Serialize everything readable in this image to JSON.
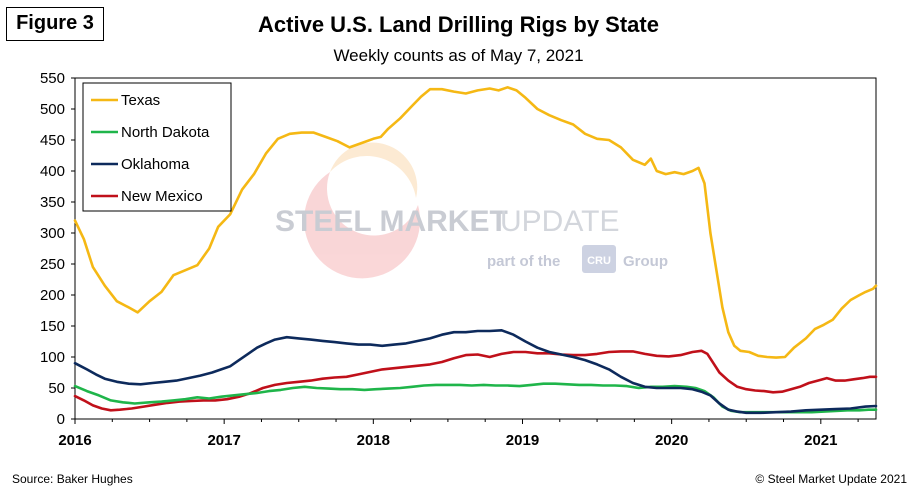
{
  "figure_label": "Figure 3",
  "title": "Active U.S. Land Drilling Rigs by State",
  "subtitle": "Weekly counts as of May 7, 2021",
  "source": "Source: Baker Hughes",
  "copyright": "© Steel Market Update 2021",
  "watermark": {
    "brand_main": "STEEL MARKET",
    "brand_light": "UPDATE",
    "tagline_before": "part of the",
    "tagline_logo": "CRU",
    "tagline_after": "Group"
  },
  "chart_data": {
    "type": "line",
    "title": "Active U.S. Land Drilling Rigs by State",
    "subtitle": "Weekly counts as of May 7, 2021",
    "xlabel": "",
    "ylabel": "",
    "xlim": [
      2016.0,
      2021.37
    ],
    "ylim": [
      0,
      550
    ],
    "y_ticks": [
      0,
      50,
      100,
      150,
      200,
      250,
      300,
      350,
      400,
      450,
      500,
      550
    ],
    "x_ticks": [
      "2016",
      "2017",
      "2018",
      "2019",
      "2020",
      "2021"
    ],
    "grid": false,
    "legend_position": "top-left",
    "series": [
      {
        "name": "Texas",
        "color": "#f5b814",
        "points": [
          [
            2016.0,
            320
          ],
          [
            2016.06,
            290
          ],
          [
            2016.12,
            245
          ],
          [
            2016.2,
            215
          ],
          [
            2016.28,
            190
          ],
          [
            2016.36,
            180
          ],
          [
            2016.42,
            172
          ],
          [
            2016.5,
            190
          ],
          [
            2016.58,
            205
          ],
          [
            2016.66,
            232
          ],
          [
            2016.74,
            240
          ],
          [
            2016.82,
            248
          ],
          [
            2016.9,
            275
          ],
          [
            2016.96,
            310
          ],
          [
            2017.04,
            330
          ],
          [
            2017.12,
            370
          ],
          [
            2017.2,
            395
          ],
          [
            2017.28,
            428
          ],
          [
            2017.36,
            452
          ],
          [
            2017.44,
            460
          ],
          [
            2017.52,
            462
          ],
          [
            2017.6,
            462
          ],
          [
            2017.68,
            455
          ],
          [
            2017.76,
            448
          ],
          [
            2017.84,
            438
          ],
          [
            2017.92,
            445
          ],
          [
            2018.0,
            452
          ],
          [
            2018.05,
            455
          ],
          [
            2018.1,
            468
          ],
          [
            2018.18,
            485
          ],
          [
            2018.26,
            505
          ],
          [
            2018.32,
            520
          ],
          [
            2018.38,
            532
          ],
          [
            2018.46,
            532
          ],
          [
            2018.54,
            528
          ],
          [
            2018.62,
            525
          ],
          [
            2018.7,
            530
          ],
          [
            2018.78,
            533
          ],
          [
            2018.84,
            530
          ],
          [
            2018.9,
            535
          ],
          [
            2018.96,
            530
          ],
          [
            2019.02,
            518
          ],
          [
            2019.1,
            500
          ],
          [
            2019.18,
            490
          ],
          [
            2019.26,
            482
          ],
          [
            2019.34,
            475
          ],
          [
            2019.42,
            460
          ],
          [
            2019.5,
            452
          ],
          [
            2019.58,
            450
          ],
          [
            2019.66,
            438
          ],
          [
            2019.74,
            418
          ],
          [
            2019.82,
            410
          ],
          [
            2019.86,
            420
          ],
          [
            2019.9,
            400
          ],
          [
            2019.96,
            395
          ],
          [
            2020.02,
            398
          ],
          [
            2020.08,
            395
          ],
          [
            2020.14,
            400
          ],
          [
            2020.18,
            405
          ],
          [
            2020.22,
            380
          ],
          [
            2020.26,
            300
          ],
          [
            2020.3,
            240
          ],
          [
            2020.34,
            180
          ],
          [
            2020.38,
            140
          ],
          [
            2020.42,
            118
          ],
          [
            2020.46,
            110
          ],
          [
            2020.52,
            108
          ],
          [
            2020.58,
            102
          ],
          [
            2020.64,
            100
          ],
          [
            2020.7,
            99
          ],
          [
            2020.76,
            100
          ],
          [
            2020.82,
            115
          ],
          [
            2020.9,
            130
          ],
          [
            2020.96,
            145
          ],
          [
            2021.02,
            152
          ],
          [
            2021.08,
            160
          ],
          [
            2021.14,
            178
          ],
          [
            2021.2,
            192
          ],
          [
            2021.26,
            200
          ],
          [
            2021.3,
            205
          ],
          [
            2021.35,
            210
          ],
          [
            2021.37,
            215
          ]
        ]
      },
      {
        "name": "North Dakota",
        "color": "#1fb54a",
        "points": [
          [
            2016.0,
            53
          ],
          [
            2016.08,
            45
          ],
          [
            2016.16,
            38
          ],
          [
            2016.24,
            30
          ],
          [
            2016.32,
            27
          ],
          [
            2016.4,
            25
          ],
          [
            2016.5,
            27
          ],
          [
            2016.58,
            28
          ],
          [
            2016.66,
            30
          ],
          [
            2016.74,
            32
          ],
          [
            2016.82,
            35
          ],
          [
            2016.9,
            33
          ],
          [
            2016.98,
            36
          ],
          [
            2017.06,
            38
          ],
          [
            2017.14,
            40
          ],
          [
            2017.22,
            42
          ],
          [
            2017.3,
            45
          ],
          [
            2017.38,
            47
          ],
          [
            2017.46,
            50
          ],
          [
            2017.54,
            52
          ],
          [
            2017.62,
            50
          ],
          [
            2017.7,
            49
          ],
          [
            2017.78,
            48
          ],
          [
            2017.86,
            48
          ],
          [
            2017.94,
            47
          ],
          [
            2018.02,
            48
          ],
          [
            2018.1,
            49
          ],
          [
            2018.18,
            50
          ],
          [
            2018.26,
            52
          ],
          [
            2018.34,
            54
          ],
          [
            2018.42,
            55
          ],
          [
            2018.5,
            55
          ],
          [
            2018.58,
            55
          ],
          [
            2018.66,
            54
          ],
          [
            2018.74,
            55
          ],
          [
            2018.82,
            54
          ],
          [
            2018.9,
            54
          ],
          [
            2018.98,
            53
          ],
          [
            2019.06,
            55
          ],
          [
            2019.14,
            57
          ],
          [
            2019.22,
            57
          ],
          [
            2019.3,
            56
          ],
          [
            2019.38,
            55
          ],
          [
            2019.46,
            55
          ],
          [
            2019.54,
            54
          ],
          [
            2019.62,
            54
          ],
          [
            2019.7,
            53
          ],
          [
            2019.78,
            50
          ],
          [
            2019.86,
            52
          ],
          [
            2019.94,
            52
          ],
          [
            2020.02,
            53
          ],
          [
            2020.1,
            52
          ],
          [
            2020.16,
            50
          ],
          [
            2020.22,
            45
          ],
          [
            2020.28,
            35
          ],
          [
            2020.34,
            20
          ],
          [
            2020.4,
            13
          ],
          [
            2020.46,
            11
          ],
          [
            2020.54,
            11
          ],
          [
            2020.62,
            11
          ],
          [
            2020.7,
            11
          ],
          [
            2020.78,
            11
          ],
          [
            2020.86,
            11
          ],
          [
            2020.94,
            11
          ],
          [
            2021.02,
            12
          ],
          [
            2021.1,
            13
          ],
          [
            2021.18,
            14
          ],
          [
            2021.26,
            14
          ],
          [
            2021.32,
            15
          ],
          [
            2021.37,
            15
          ]
        ]
      },
      {
        "name": "Oklahoma",
        "color": "#0d2a5c",
        "points": [
          [
            2016.0,
            90
          ],
          [
            2016.04,
            85
          ],
          [
            2016.08,
            80
          ],
          [
            2016.14,
            72
          ],
          [
            2016.2,
            65
          ],
          [
            2016.28,
            60
          ],
          [
            2016.36,
            57
          ],
          [
            2016.44,
            56
          ],
          [
            2016.52,
            58
          ],
          [
            2016.6,
            60
          ],
          [
            2016.68,
            62
          ],
          [
            2016.76,
            66
          ],
          [
            2016.84,
            70
          ],
          [
            2016.92,
            75
          ],
          [
            2016.98,
            80
          ],
          [
            2017.04,
            85
          ],
          [
            2017.1,
            95
          ],
          [
            2017.16,
            105
          ],
          [
            2017.22,
            115
          ],
          [
            2017.28,
            122
          ],
          [
            2017.34,
            128
          ],
          [
            2017.42,
            132
          ],
          [
            2017.5,
            130
          ],
          [
            2017.58,
            128
          ],
          [
            2017.66,
            126
          ],
          [
            2017.74,
            124
          ],
          [
            2017.82,
            122
          ],
          [
            2017.9,
            120
          ],
          [
            2017.98,
            120
          ],
          [
            2018.06,
            118
          ],
          [
            2018.14,
            120
          ],
          [
            2018.22,
            122
          ],
          [
            2018.3,
            126
          ],
          [
            2018.38,
            130
          ],
          [
            2018.46,
            136
          ],
          [
            2018.54,
            140
          ],
          [
            2018.62,
            140
          ],
          [
            2018.7,
            142
          ],
          [
            2018.78,
            142
          ],
          [
            2018.86,
            143
          ],
          [
            2018.94,
            136
          ],
          [
            2019.02,
            125
          ],
          [
            2019.1,
            115
          ],
          [
            2019.18,
            108
          ],
          [
            2019.26,
            104
          ],
          [
            2019.34,
            100
          ],
          [
            2019.42,
            95
          ],
          [
            2019.5,
            88
          ],
          [
            2019.58,
            80
          ],
          [
            2019.66,
            68
          ],
          [
            2019.74,
            58
          ],
          [
            2019.82,
            52
          ],
          [
            2019.9,
            50
          ],
          [
            2019.98,
            50
          ],
          [
            2020.06,
            50
          ],
          [
            2020.14,
            48
          ],
          [
            2020.2,
            44
          ],
          [
            2020.26,
            38
          ],
          [
            2020.32,
            25
          ],
          [
            2020.38,
            15
          ],
          [
            2020.44,
            12
          ],
          [
            2020.5,
            10
          ],
          [
            2020.6,
            10
          ],
          [
            2020.7,
            11
          ],
          [
            2020.8,
            12
          ],
          [
            2020.9,
            14
          ],
          [
            2021.0,
            15
          ],
          [
            2021.1,
            16
          ],
          [
            2021.2,
            17
          ],
          [
            2021.3,
            20
          ],
          [
            2021.37,
            21
          ]
        ]
      },
      {
        "name": "New Mexico",
        "color": "#c0101a",
        "points": [
          [
            2016.0,
            37
          ],
          [
            2016.06,
            30
          ],
          [
            2016.12,
            22
          ],
          [
            2016.18,
            17
          ],
          [
            2016.24,
            14
          ],
          [
            2016.3,
            15
          ],
          [
            2016.38,
            17
          ],
          [
            2016.46,
            20
          ],
          [
            2016.54,
            23
          ],
          [
            2016.62,
            26
          ],
          [
            2016.7,
            28
          ],
          [
            2016.78,
            29
          ],
          [
            2016.86,
            30
          ],
          [
            2016.94,
            30
          ],
          [
            2017.02,
            32
          ],
          [
            2017.1,
            36
          ],
          [
            2017.18,
            42
          ],
          [
            2017.26,
            50
          ],
          [
            2017.34,
            55
          ],
          [
            2017.42,
            58
          ],
          [
            2017.5,
            60
          ],
          [
            2017.58,
            62
          ],
          [
            2017.66,
            65
          ],
          [
            2017.74,
            67
          ],
          [
            2017.82,
            68
          ],
          [
            2017.9,
            72
          ],
          [
            2017.98,
            76
          ],
          [
            2018.06,
            80
          ],
          [
            2018.14,
            82
          ],
          [
            2018.22,
            84
          ],
          [
            2018.3,
            86
          ],
          [
            2018.38,
            88
          ],
          [
            2018.46,
            92
          ],
          [
            2018.54,
            98
          ],
          [
            2018.62,
            103
          ],
          [
            2018.7,
            104
          ],
          [
            2018.78,
            100
          ],
          [
            2018.86,
            105
          ],
          [
            2018.94,
            108
          ],
          [
            2019.02,
            108
          ],
          [
            2019.1,
            106
          ],
          [
            2019.18,
            106
          ],
          [
            2019.26,
            104
          ],
          [
            2019.34,
            103
          ],
          [
            2019.42,
            103
          ],
          [
            2019.5,
            105
          ],
          [
            2019.58,
            108
          ],
          [
            2019.66,
            109
          ],
          [
            2019.74,
            109
          ],
          [
            2019.82,
            105
          ],
          [
            2019.9,
            102
          ],
          [
            2019.98,
            101
          ],
          [
            2020.06,
            103
          ],
          [
            2020.14,
            108
          ],
          [
            2020.2,
            110
          ],
          [
            2020.24,
            105
          ],
          [
            2020.28,
            90
          ],
          [
            2020.32,
            75
          ],
          [
            2020.38,
            62
          ],
          [
            2020.44,
            52
          ],
          [
            2020.5,
            48
          ],
          [
            2020.56,
            46
          ],
          [
            2020.62,
            45
          ],
          [
            2020.68,
            43
          ],
          [
            2020.74,
            44
          ],
          [
            2020.8,
            48
          ],
          [
            2020.86,
            52
          ],
          [
            2020.92,
            58
          ],
          [
            2020.98,
            62
          ],
          [
            2021.04,
            66
          ],
          [
            2021.1,
            62
          ],
          [
            2021.16,
            62
          ],
          [
            2021.22,
            64
          ],
          [
            2021.28,
            66
          ],
          [
            2021.33,
            68
          ],
          [
            2021.37,
            68
          ]
        ]
      }
    ]
  }
}
